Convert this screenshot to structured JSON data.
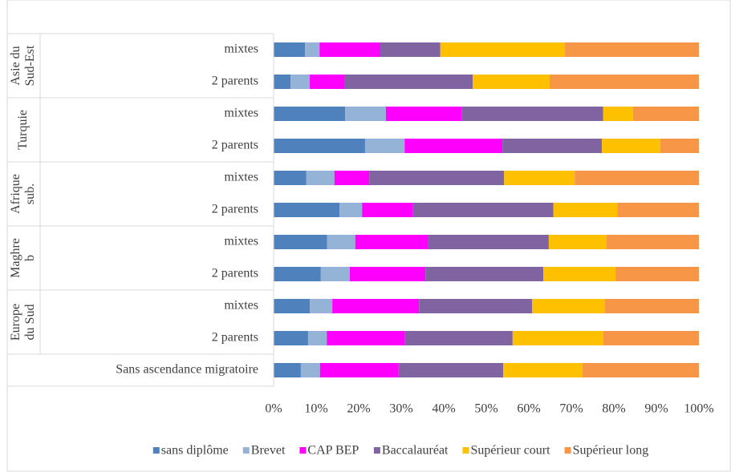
{
  "chart_data": {
    "type": "stacked-bar-horizontal",
    "groups": [
      {
        "name": [
          "Asie du",
          "Sud-Est"
        ],
        "categories": [
          "mixtes",
          "2 parents"
        ]
      },
      {
        "name": [
          "Turquie"
        ],
        "categories": [
          "mixtes",
          "2 parents"
        ]
      },
      {
        "name": [
          "Afrique",
          "sub."
        ],
        "categories": [
          "mixtes",
          "2 parents"
        ]
      },
      {
        "name": [
          "Maghre",
          "b"
        ],
        "categories": [
          "mixtes",
          "2 parents"
        ]
      },
      {
        "name": [
          "Europe",
          "du Sud"
        ],
        "categories": [
          "mixtes",
          "2 parents"
        ]
      },
      {
        "categories": [
          "Sans ascendance migratoire"
        ]
      }
    ],
    "series": [
      {
        "name": "sans diplôme",
        "color": "#4f81bd",
        "values": [
          7.4,
          4.0,
          16.8,
          21.5,
          7.7,
          15.5,
          12.6,
          11.1,
          8.5,
          8.1,
          6.4
        ]
      },
      {
        "name": "Brevet",
        "color": "#95b3d7",
        "values": [
          3.4,
          4.5,
          9.6,
          9.3,
          6.6,
          5.3,
          6.6,
          6.8,
          5.3,
          4.4,
          4.5
        ]
      },
      {
        "name": "CAP BEP",
        "color": "#ff00ff",
        "values": [
          14.3,
          8.1,
          17.9,
          23.0,
          8.2,
          12.0,
          17.2,
          17.8,
          20.4,
          18.4,
          18.5
        ]
      },
      {
        "name": "Baccalauréat",
        "color": "#8064a2",
        "values": [
          14.1,
          30.2,
          33.2,
          23.4,
          31.7,
          33.0,
          28.3,
          27.7,
          26.6,
          25.3,
          24.6
        ]
      },
      {
        "name": "Supérieur court",
        "color": "#ffc000",
        "values": [
          29.3,
          18.1,
          7.0,
          13.7,
          16.6,
          15.0,
          13.6,
          17.0,
          17.1,
          21.3,
          18.6
        ]
      },
      {
        "name": "Supérieur long",
        "color": "#f79646",
        "values": [
          31.5,
          35.1,
          15.5,
          9.1,
          29.2,
          19.2,
          21.7,
          19.6,
          22.1,
          22.5,
          27.4
        ]
      }
    ],
    "xlim": [
      0,
      100
    ],
    "xticks": [
      {
        "value": 0,
        "label": "0%"
      },
      {
        "value": 10,
        "label": "10%"
      },
      {
        "value": 20,
        "label": "20%"
      },
      {
        "value": 30,
        "label": "30%"
      },
      {
        "value": 40,
        "label": "40%"
      },
      {
        "value": 50,
        "label": "50%"
      },
      {
        "value": 60,
        "label": "60%"
      },
      {
        "value": 70,
        "label": "70%"
      },
      {
        "value": 80,
        "label": "80%"
      },
      {
        "value": 90,
        "label": "90%"
      },
      {
        "value": 100,
        "label": "100%"
      }
    ],
    "legend": "bottom"
  }
}
